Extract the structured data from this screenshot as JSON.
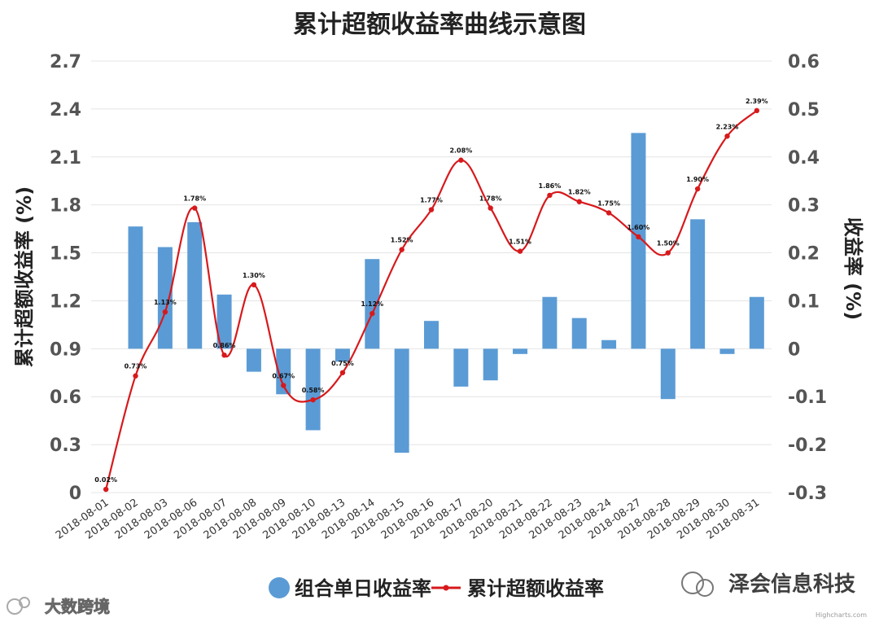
{
  "chart_data": {
    "type": "bar+line",
    "title": "累计超额收益率曲线示意图",
    "categories": [
      "2018-08-01",
      "2018-08-02",
      "2018-08-03",
      "2018-08-06",
      "2018-08-07",
      "2018-08-08",
      "2018-08-09",
      "2018-08-10",
      "2018-08-13",
      "2018-08-14",
      "2018-08-15",
      "2018-08-16",
      "2018-08-17",
      "2018-08-20",
      "2018-08-21",
      "2018-08-22",
      "2018-08-23",
      "2018-08-24",
      "2018-08-27",
      "2018-08-28",
      "2018-08-29",
      "2018-08-30",
      "2018-08-31"
    ],
    "left_axis": {
      "label": "累计超额收益率 (%)",
      "range": [
        0,
        2.7
      ],
      "ticks": [
        "0",
        "0.3",
        "0.6",
        "0.9",
        "1.2",
        "1.5",
        "1.8",
        "2.1",
        "2.4",
        "2.7"
      ],
      "tick_values": [
        0,
        0.3,
        0.6,
        0.9,
        1.2,
        1.5,
        1.8,
        2.1,
        2.4,
        2.7
      ]
    },
    "right_axis": {
      "label": "收益率 (%)",
      "range": [
        -0.3,
        0.6
      ],
      "ticks": [
        "-0.3",
        "-0.2",
        "-0.1",
        "0",
        "0.1",
        "0.2",
        "0.3",
        "0.4",
        "0.5",
        "0.6"
      ],
      "tick_values": [
        -0.3,
        -0.2,
        -0.1,
        0,
        0.1,
        0.2,
        0.3,
        0.4,
        0.5,
        0.6
      ]
    },
    "series": [
      {
        "name": "组合单日收益率",
        "type": "bar",
        "axis": "right",
        "color": "#5b9bd5",
        "values": [
          0,
          0.255,
          0.212,
          0.264,
          0.113,
          -0.048,
          -0.095,
          -0.17,
          -0.027,
          0.187,
          -0.217,
          0.058,
          -0.079,
          -0.066,
          -0.011,
          0.108,
          0.064,
          0.018,
          0.45,
          -0.105,
          0.27,
          -0.011,
          0.108
        ]
      },
      {
        "name": "累计超额收益率",
        "type": "line",
        "axis": "left",
        "color": "#d7191c",
        "values": [
          0.02,
          0.73,
          1.13,
          1.78,
          0.86,
          1.3,
          0.67,
          0.58,
          0.75,
          1.12,
          1.52,
          1.77,
          2.08,
          1.78,
          1.51,
          1.86,
          1.82,
          1.75,
          1.6,
          1.5,
          1.9,
          2.23,
          2.39
        ],
        "labels": [
          "0.02%",
          "0.73%",
          "1.13%",
          "1.78%",
          "0.86%",
          "1.30%",
          "0.67%",
          "0.58%",
          "0.75%",
          "1.12%",
          "1.52%",
          "1.77%",
          "2.08%",
          "1.78%",
          "1.51%",
          "1.86%",
          "1.82%",
          "1.75%",
          "1.60%",
          "1.50%",
          "1.90%",
          "2.23%",
          "2.39%"
        ]
      }
    ],
    "legend_position": "bottom",
    "grid": true
  },
  "legend": {
    "bar_label": "组合单日收益率",
    "line_label": "累计超额收益率"
  },
  "watermarks": {
    "left": "大数跨境",
    "right": "泽会信息科技",
    "bottom_right": "Highcharts.com"
  }
}
